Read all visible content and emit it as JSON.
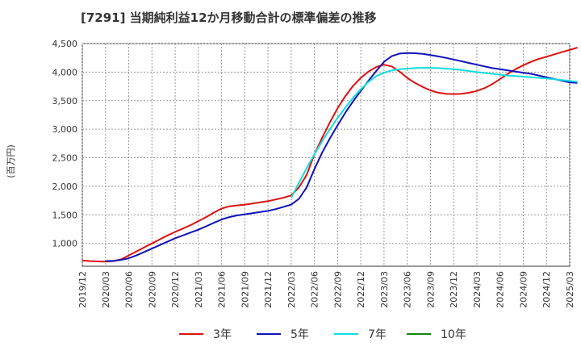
{
  "chart_data": {
    "type": "line",
    "title": "[7291]  当期純利益12か月移動合計の標準偏差の推移",
    "ylabel": "(百万円)",
    "xlabel": "",
    "ylim": [
      600,
      4500
    ],
    "yticks": [
      1000,
      1500,
      2000,
      2500,
      3000,
      3500,
      4000,
      4500
    ],
    "ytick_labels": [
      "1,000",
      "1,500",
      "2,000",
      "2,500",
      "3,000",
      "3,500",
      "4,000",
      "4,500"
    ],
    "x_start": "2019-12",
    "x_end": "2025-03",
    "xtick_labels": [
      "2019/12",
      "2020/03",
      "2020/06",
      "2020/09",
      "2020/12",
      "2021/03",
      "2021/06",
      "2021/09",
      "2021/12",
      "2022/03",
      "2022/06",
      "2022/09",
      "2022/12",
      "2023/03",
      "2023/06",
      "2023/09",
      "2023/12",
      "2024/03",
      "2024/06",
      "2024/09",
      "2024/12",
      "2025/03"
    ],
    "grid": true,
    "legend_position": "bottom",
    "series": [
      {
        "name": "3年",
        "color": "#dd1111",
        "points": [
          [
            "2019-12",
            700
          ],
          [
            "2020-01",
            690
          ],
          [
            "2020-02",
            685
          ],
          [
            "2020-03",
            680
          ],
          [
            "2020-04",
            690
          ],
          [
            "2020-05",
            720
          ],
          [
            "2020-06",
            790
          ],
          [
            "2020-07",
            860
          ],
          [
            "2020-08",
            930
          ],
          [
            "2020-09",
            1000
          ],
          [
            "2020-10",
            1070
          ],
          [
            "2020-11",
            1140
          ],
          [
            "2020-12",
            1200
          ],
          [
            "2021-01",
            1260
          ],
          [
            "2021-02",
            1320
          ],
          [
            "2021-03",
            1390
          ],
          [
            "2021-04",
            1460
          ],
          [
            "2021-05",
            1540
          ],
          [
            "2021-06",
            1610
          ],
          [
            "2021-07",
            1650
          ],
          [
            "2021-08",
            1665
          ],
          [
            "2021-09",
            1680
          ],
          [
            "2021-10",
            1700
          ],
          [
            "2021-11",
            1720
          ],
          [
            "2021-12",
            1740
          ],
          [
            "2022-01",
            1770
          ],
          [
            "2022-02",
            1800
          ],
          [
            "2022-03",
            1840
          ],
          [
            "2022-04",
            1980
          ],
          [
            "2022-05",
            2200
          ],
          [
            "2022-06",
            2560
          ],
          [
            "2022-07",
            2850
          ],
          [
            "2022-08",
            3120
          ],
          [
            "2022-09",
            3370
          ],
          [
            "2022-10",
            3580
          ],
          [
            "2022-11",
            3760
          ],
          [
            "2022-12",
            3900
          ],
          [
            "2023-01",
            4010
          ],
          [
            "2023-02",
            4090
          ],
          [
            "2023-03",
            4130
          ],
          [
            "2023-04",
            4100
          ],
          [
            "2023-05",
            4010
          ],
          [
            "2023-06",
            3900
          ],
          [
            "2023-07",
            3810
          ],
          [
            "2023-08",
            3740
          ],
          [
            "2023-09",
            3680
          ],
          [
            "2023-10",
            3640
          ],
          [
            "2023-11",
            3620
          ],
          [
            "2023-12",
            3615
          ],
          [
            "2024-01",
            3620
          ],
          [
            "2024-02",
            3640
          ],
          [
            "2024-03",
            3670
          ],
          [
            "2024-04",
            3720
          ],
          [
            "2024-05",
            3790
          ],
          [
            "2024-06",
            3880
          ],
          [
            "2024-07",
            3970
          ],
          [
            "2024-08",
            4050
          ],
          [
            "2024-09",
            4120
          ],
          [
            "2024-10",
            4180
          ],
          [
            "2024-11",
            4230
          ],
          [
            "2024-12",
            4270
          ],
          [
            "2025-01",
            4310
          ],
          [
            "2025-02",
            4350
          ],
          [
            "2025-03",
            4390
          ],
          [
            "2025-04",
            4430
          ]
        ]
      },
      {
        "name": "5年",
        "color": "#1111bb",
        "points": [
          [
            "2020-03",
            690
          ],
          [
            "2020-04",
            695
          ],
          [
            "2020-05",
            710
          ],
          [
            "2020-06",
            740
          ],
          [
            "2020-07",
            790
          ],
          [
            "2020-08",
            850
          ],
          [
            "2020-09",
            910
          ],
          [
            "2020-10",
            970
          ],
          [
            "2020-11",
            1030
          ],
          [
            "2020-12",
            1090
          ],
          [
            "2021-01",
            1140
          ],
          [
            "2021-02",
            1190
          ],
          [
            "2021-03",
            1240
          ],
          [
            "2021-04",
            1300
          ],
          [
            "2021-05",
            1360
          ],
          [
            "2021-06",
            1420
          ],
          [
            "2021-07",
            1460
          ],
          [
            "2021-08",
            1490
          ],
          [
            "2021-09",
            1510
          ],
          [
            "2021-10",
            1530
          ],
          [
            "2021-11",
            1550
          ],
          [
            "2021-12",
            1570
          ],
          [
            "2022-01",
            1600
          ],
          [
            "2022-02",
            1640
          ],
          [
            "2022-03",
            1680
          ],
          [
            "2022-04",
            1780
          ],
          [
            "2022-05",
            1980
          ],
          [
            "2022-06",
            2300
          ],
          [
            "2022-07",
            2590
          ],
          [
            "2022-08",
            2840
          ],
          [
            "2022-09",
            3070
          ],
          [
            "2022-10",
            3290
          ],
          [
            "2022-11",
            3490
          ],
          [
            "2022-12",
            3670
          ],
          [
            "2023-01",
            3850
          ],
          [
            "2023-02",
            4020
          ],
          [
            "2023-03",
            4180
          ],
          [
            "2023-04",
            4280
          ],
          [
            "2023-05",
            4325
          ],
          [
            "2023-06",
            4335
          ],
          [
            "2023-07",
            4330
          ],
          [
            "2023-08",
            4320
          ],
          [
            "2023-09",
            4300
          ],
          [
            "2023-10",
            4275
          ],
          [
            "2023-11",
            4250
          ],
          [
            "2023-12",
            4220
          ],
          [
            "2024-01",
            4190
          ],
          [
            "2024-02",
            4160
          ],
          [
            "2024-03",
            4130
          ],
          [
            "2024-04",
            4100
          ],
          [
            "2024-05",
            4070
          ],
          [
            "2024-06",
            4050
          ],
          [
            "2024-07",
            4030
          ],
          [
            "2024-08",
            4010
          ],
          [
            "2024-09",
            3990
          ],
          [
            "2024-10",
            3970
          ],
          [
            "2024-11",
            3940
          ],
          [
            "2024-12",
            3910
          ],
          [
            "2025-01",
            3880
          ],
          [
            "2025-02",
            3850
          ],
          [
            "2025-03",
            3820
          ],
          [
            "2025-04",
            3810
          ]
        ]
      },
      {
        "name": "7年",
        "color": "#11dddd",
        "points": [
          [
            "2022-03",
            1800
          ],
          [
            "2022-04",
            2060
          ],
          [
            "2022-05",
            2320
          ],
          [
            "2022-06",
            2560
          ],
          [
            "2022-07",
            2790
          ],
          [
            "2022-08",
            3000
          ],
          [
            "2022-09",
            3200
          ],
          [
            "2022-10",
            3380
          ],
          [
            "2022-11",
            3550
          ],
          [
            "2022-12",
            3700
          ],
          [
            "2023-01",
            3830
          ],
          [
            "2023-02",
            3930
          ],
          [
            "2023-03",
            3990
          ],
          [
            "2023-04",
            4030
          ],
          [
            "2023-05",
            4050
          ],
          [
            "2023-06",
            4060
          ],
          [
            "2023-07",
            4070
          ],
          [
            "2023-08",
            4075
          ],
          [
            "2023-09",
            4075
          ],
          [
            "2023-10",
            4070
          ],
          [
            "2023-11",
            4060
          ],
          [
            "2023-12",
            4050
          ],
          [
            "2024-01",
            4035
          ],
          [
            "2024-02",
            4020
          ],
          [
            "2024-03",
            4000
          ],
          [
            "2024-04",
            3985
          ],
          [
            "2024-05",
            3970
          ],
          [
            "2024-06",
            3955
          ],
          [
            "2024-07",
            3940
          ],
          [
            "2024-08",
            3930
          ],
          [
            "2024-09",
            3920
          ],
          [
            "2024-10",
            3910
          ],
          [
            "2024-11",
            3900
          ],
          [
            "2024-12",
            3890
          ],
          [
            "2025-01",
            3875
          ],
          [
            "2025-02",
            3860
          ],
          [
            "2025-03",
            3845
          ],
          [
            "2025-04",
            3830
          ]
        ]
      },
      {
        "name": "10年",
        "color": "#118811",
        "points": []
      }
    ]
  }
}
